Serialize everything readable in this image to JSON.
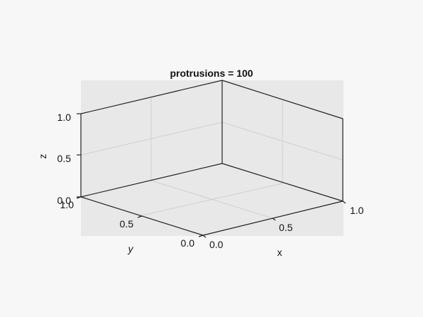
{
  "chart_data": {
    "type": "scatter",
    "title": "protrusions = 100",
    "xlabel": "x",
    "ylabel": "y",
    "zlabel": "z",
    "xlim": [
      0,
      1
    ],
    "ylim": [
      0,
      1
    ],
    "zlim": [
      0,
      1
    ],
    "ticks": {
      "x": [
        "0.0",
        "0.5",
        "1.0"
      ],
      "y": [
        "0.0",
        "0.5",
        "1.0"
      ],
      "z": [
        "0.0",
        "0.5",
        "1.0"
      ]
    },
    "grid": true,
    "series": []
  },
  "colors": {
    "panel": "#e8e8e8",
    "background": "#f7f7f7",
    "axis": "#222222",
    "grid": "#cfcfcf"
  }
}
